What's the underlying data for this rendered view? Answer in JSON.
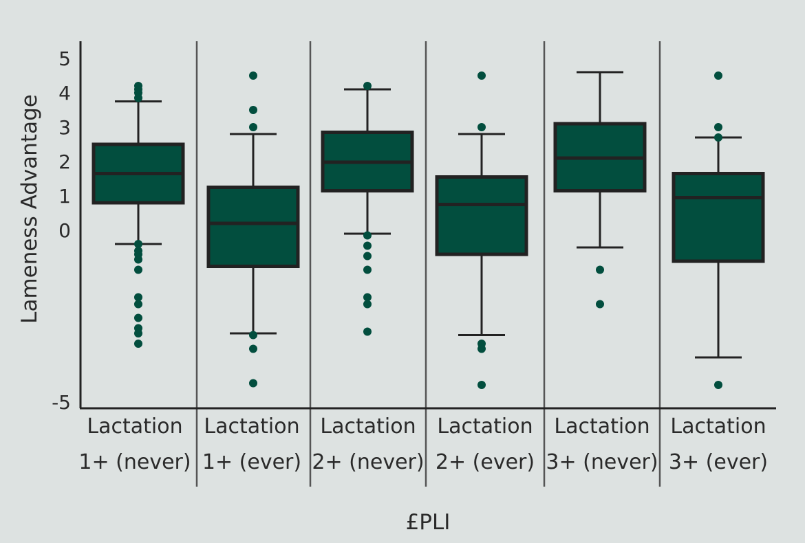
{
  "chart_data": {
    "type": "box",
    "xlabel": "£PLI",
    "ylabel": "Lameness Advantage",
    "ylim": [
      -5.2,
      5.5
    ],
    "yticks": [
      "5",
      "4",
      "3",
      "2",
      "1",
      "0",
      "-5"
    ],
    "ytick_values": [
      5,
      4,
      3,
      2,
      1,
      0,
      -5
    ],
    "categories": [
      {
        "line1": "Lactation",
        "line2": "1+ (never)"
      },
      {
        "line1": "Lactation",
        "line2": "1+ (ever)"
      },
      {
        "line1": "Lactation",
        "line2": "2+ (never)"
      },
      {
        "line1": "Lactation",
        "line2": "2+ (ever)"
      },
      {
        "line1": "Lactation",
        "line2": "3+ (never)"
      },
      {
        "line1": "Lactation",
        "line2": "3+ (ever)"
      }
    ],
    "boxes": [
      {
        "whisker_low": -0.4,
        "q1": 0.8,
        "median": 1.65,
        "q3": 2.5,
        "whisker_high": 3.75,
        "outliers": [
          4.2,
          4.1,
          4.0,
          3.85,
          -0.4,
          -0.6,
          -0.7,
          -0.85,
          -1.15,
          -1.95,
          -2.15,
          -2.55,
          -2.85,
          -3.0,
          -3.3
        ]
      },
      {
        "whisker_low": -3.0,
        "q1": -1.05,
        "median": 0.2,
        "q3": 1.25,
        "whisker_high": 2.8,
        "outliers": [
          4.5,
          3.5,
          3.0,
          -3.05,
          -3.45,
          -4.45
        ]
      },
      {
        "whisker_low": -0.1,
        "q1": 1.15,
        "median": 1.98,
        "q3": 2.85,
        "whisker_high": 4.1,
        "outliers": [
          4.2,
          -0.15,
          -0.45,
          -0.75,
          -1.15,
          -1.95,
          -2.15,
          -2.95
        ]
      },
      {
        "whisker_low": -3.05,
        "q1": -0.7,
        "median": 0.75,
        "q3": 1.55,
        "whisker_high": 2.8,
        "outliers": [
          4.5,
          3.0,
          -3.3,
          -3.45,
          -4.5
        ]
      },
      {
        "whisker_low": -0.5,
        "q1": 1.15,
        "median": 2.1,
        "q3": 3.1,
        "whisker_high": 4.6,
        "outliers": [
          -1.15,
          -2.15
        ]
      },
      {
        "whisker_low": -3.7,
        "q1": -0.9,
        "median": 0.95,
        "q3": 1.65,
        "whisker_high": 2.7,
        "outliers": [
          4.5,
          3.0,
          2.7,
          -4.5
        ]
      }
    ],
    "grid": false,
    "legend": "none",
    "colors": {
      "box_fill": "#024e3e",
      "box_stroke": "#222222",
      "outlier": "#024e3e",
      "whisker": "#222222",
      "separator": "#555555",
      "axis": "#222222",
      "background": "#dde2e1"
    }
  }
}
